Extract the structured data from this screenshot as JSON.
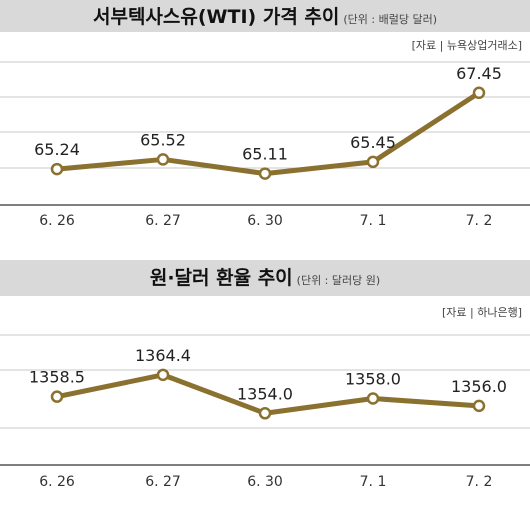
{
  "chart_data": [
    {
      "type": "line",
      "title": "서부텍사스유(WTI) 가격 추이",
      "unit": "(단위 : 배럴당 달러)",
      "source": "[자료 | 뉴욕상업거래소]",
      "categories": [
        "6. 26",
        "6. 27",
        "6. 30",
        "7. 1",
        "7. 2"
      ],
      "series": [
        {
          "values": [
            65.24,
            65.52,
            65.11,
            65.45,
            67.45
          ]
        }
      ],
      "data_labels": [
        "65.24",
        "65.52",
        "65.11",
        "65.45",
        "67.45"
      ],
      "ylim": [
        64.2,
        68.4
      ],
      "grid": true,
      "colors": {
        "line": "#8a7130",
        "marker_fill": "#ffffff",
        "title_bar": "#d9d9d9"
      }
    },
    {
      "type": "line",
      "title": "원·달러 환율 추이",
      "unit": "(단위 : 달러당 원)",
      "source": "[자료 | 하나은행]",
      "categories": [
        "6. 26",
        "6. 27",
        "6. 30",
        "7. 1",
        "7. 2"
      ],
      "series": [
        {
          "values": [
            1358.5,
            1364.4,
            1354.0,
            1358.0,
            1356.0
          ]
        }
      ],
      "data_labels": [
        "1358.5",
        "1364.4",
        "1354.0",
        "1358.0",
        "1356.0"
      ],
      "ylim": [
        1340,
        1376
      ],
      "grid": true,
      "colors": {
        "line": "#8a7130",
        "marker_fill": "#ffffff",
        "title_bar": "#d9d9d9"
      }
    }
  ]
}
